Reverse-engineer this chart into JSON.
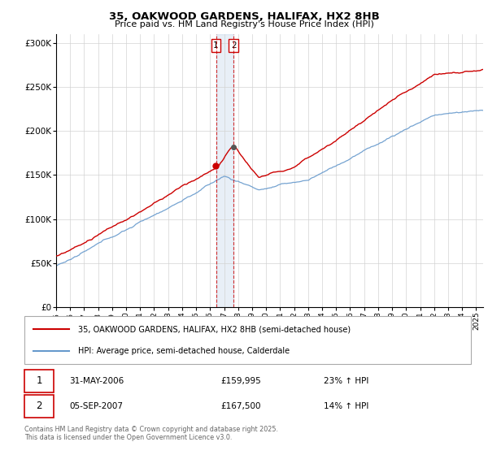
{
  "title_line1": "35, OAKWOOD GARDENS, HALIFAX, HX2 8HB",
  "title_line2": "Price paid vs. HM Land Registry's House Price Index (HPI)",
  "ylabel_ticks": [
    "£0",
    "£50K",
    "£100K",
    "£150K",
    "£200K",
    "£250K",
    "£300K"
  ],
  "ylim": [
    0,
    310000
  ],
  "yticks": [
    0,
    50000,
    100000,
    150000,
    200000,
    250000,
    300000
  ],
  "red_color": "#cc0000",
  "blue_color": "#6699cc",
  "vline_color": "#cc0000",
  "purchase1_x": 2006.42,
  "purchase2_x": 2007.67,
  "legend_line1": "35, OAKWOOD GARDENS, HALIFAX, HX2 8HB (semi-detached house)",
  "legend_line2": "HPI: Average price, semi-detached house, Calderdale",
  "purchase1_date": "31-MAY-2006",
  "purchase1_price": "£159,995",
  "purchase1_hpi": "23% ↑ HPI",
  "purchase2_date": "05-SEP-2007",
  "purchase2_price": "£167,500",
  "purchase2_hpi": "14% ↑ HPI",
  "footer": "Contains HM Land Registry data © Crown copyright and database right 2025.\nThis data is licensed under the Open Government Licence v3.0.",
  "xmin": 1995,
  "xmax": 2025.5
}
